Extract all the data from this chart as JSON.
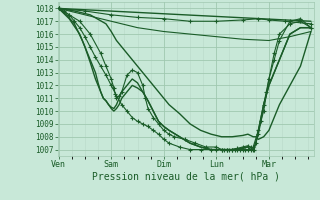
{
  "bg_color": "#c8e8d8",
  "grid_major_color": "#a0c8b0",
  "grid_minor_color": "#b8d8c8",
  "line_color": "#1a5c28",
  "ylim": [
    1006.5,
    1018.5
  ],
  "yticks": [
    1007,
    1008,
    1009,
    1010,
    1011,
    1012,
    1013,
    1014,
    1015,
    1016,
    1017,
    1018
  ],
  "xlabel": "Pression niveau de la mer( hPa )",
  "xtick_labels": [
    "Ven",
    "Sam",
    "Dim",
    "Lun",
    "Mar"
  ],
  "xtick_positions": [
    0.0,
    1.0,
    2.0,
    3.0,
    4.0
  ],
  "xlim": [
    -0.02,
    4.85
  ],
  "lines": [
    {
      "x": [
        0.0,
        4.8
      ],
      "y": [
        1018.0,
        1017.0
      ],
      "marker": null,
      "lw": 1.0,
      "ms": 0
    },
    {
      "x": [
        0.0,
        0.5,
        1.0,
        1.5,
        2.0,
        2.5,
        3.0,
        3.5,
        3.8,
        4.0,
        4.3,
        4.8
      ],
      "y": [
        1018.0,
        1017.8,
        1017.5,
        1017.3,
        1017.2,
        1017.0,
        1017.0,
        1017.1,
        1017.2,
        1017.1,
        1017.0,
        1016.8
      ],
      "marker": "+",
      "lw": 0.8,
      "ms": 3
    },
    {
      "x": [
        0.0,
        0.5,
        1.0,
        1.5,
        2.0,
        2.5,
        3.0,
        3.5,
        4.0,
        4.4,
        4.8
      ],
      "y": [
        1018.0,
        1017.5,
        1017.0,
        1016.5,
        1016.2,
        1016.0,
        1015.8,
        1015.6,
        1015.5,
        1015.8,
        1016.2
      ],
      "marker": null,
      "lw": 0.8,
      "ms": 0
    },
    {
      "x": [
        0.0,
        0.3,
        0.6,
        0.9,
        1.0,
        1.1,
        1.3,
        1.5,
        1.7,
        1.9,
        2.1,
        2.3,
        2.5,
        2.7,
        2.9,
        3.1,
        3.3,
        3.5,
        3.6,
        3.7,
        3.75,
        3.8,
        3.9,
        4.0,
        4.1,
        4.2,
        4.4,
        4.6,
        4.8
      ],
      "y": [
        1018.0,
        1017.8,
        1017.5,
        1016.8,
        1016.2,
        1015.5,
        1014.5,
        1013.5,
        1012.5,
        1011.5,
        1010.5,
        1009.8,
        1009.0,
        1008.5,
        1008.2,
        1008.0,
        1008.0,
        1008.1,
        1008.2,
        1008.0,
        1008.0,
        1007.8,
        1008.0,
        1008.5,
        1009.5,
        1010.5,
        1012.0,
        1013.5,
        1016.2
      ],
      "marker": null,
      "lw": 1.0,
      "ms": 0
    },
    {
      "x": [
        0.0,
        0.2,
        0.4,
        0.6,
        0.8,
        0.9,
        1.0,
        1.05,
        1.08,
        1.1,
        1.15,
        1.2,
        1.3,
        1.4,
        1.5,
        1.6,
        1.65,
        1.7,
        1.8,
        1.9,
        2.0,
        2.1,
        2.2,
        2.4,
        2.6,
        2.8,
        3.0,
        3.1,
        3.2,
        3.3,
        3.4,
        3.5,
        3.6,
        3.65,
        3.7,
        3.72,
        3.75,
        3.8,
        3.85,
        3.9,
        3.95,
        4.0,
        4.1,
        4.2,
        4.4,
        4.6,
        4.8
      ],
      "y": [
        1018.0,
        1017.5,
        1017.0,
        1016.0,
        1014.5,
        1013.5,
        1012.5,
        1011.8,
        1011.3,
        1011.0,
        1011.2,
        1011.5,
        1012.8,
        1013.2,
        1013.0,
        1012.0,
        1011.0,
        1010.2,
        1009.5,
        1009.0,
        1008.5,
        1008.2,
        1008.0,
        1007.8,
        1007.5,
        1007.2,
        1007.2,
        1007.0,
        1007.0,
        1007.0,
        1007.1,
        1007.2,
        1007.3,
        1007.2,
        1007.0,
        1007.0,
        1007.5,
        1008.2,
        1009.2,
        1010.5,
        1011.5,
        1012.5,
        1014.0,
        1015.5,
        1017.0,
        1017.2,
        1016.5
      ],
      "marker": "+",
      "lw": 0.8,
      "ms": 3
    },
    {
      "x": [
        0.0,
        0.2,
        0.4,
        0.5,
        0.6,
        0.7,
        0.8,
        0.85,
        0.9,
        0.95,
        1.0,
        1.05,
        1.1,
        1.15,
        1.2,
        1.3,
        1.4,
        1.5,
        1.6,
        1.7,
        1.8,
        1.9,
        2.0,
        2.1,
        2.3,
        2.5,
        2.7,
        2.9,
        3.0,
        3.1,
        3.2,
        3.3,
        3.5,
        3.6,
        3.65,
        3.7,
        3.75,
        3.8,
        3.85,
        3.9,
        4.0,
        4.2,
        4.4,
        4.6,
        4.8
      ],
      "y": [
        1018.0,
        1017.2,
        1016.0,
        1015.0,
        1013.8,
        1012.5,
        1011.5,
        1011.0,
        1010.8,
        1010.5,
        1010.3,
        1010.2,
        1010.5,
        1011.0,
        1011.5,
        1012.0,
        1012.5,
        1012.2,
        1011.5,
        1010.8,
        1010.0,
        1009.2,
        1008.8,
        1008.5,
        1008.0,
        1007.5,
        1007.2,
        1007.0,
        1007.0,
        1007.0,
        1007.0,
        1007.0,
        1007.1,
        1007.2,
        1007.0,
        1007.0,
        1007.5,
        1008.5,
        1009.5,
        1010.5,
        1012.0,
        1014.0,
        1016.0,
        1016.5,
        1016.5
      ],
      "marker": null,
      "lw": 1.0,
      "ms": 0
    },
    {
      "x": [
        0.0,
        0.15,
        0.3,
        0.45,
        0.6,
        0.7,
        0.75,
        0.8,
        0.85,
        0.9,
        0.95,
        1.0,
        1.05,
        1.1,
        1.15,
        1.2,
        1.3,
        1.4,
        1.5,
        1.6,
        1.7,
        1.8,
        1.9,
        2.0,
        2.1,
        2.3,
        2.5,
        2.7,
        2.9,
        3.0,
        3.1,
        3.2,
        3.3,
        3.5,
        3.6,
        3.65,
        3.7,
        3.75,
        3.8,
        3.85,
        3.9,
        4.0,
        4.2,
        4.4,
        4.6,
        4.8
      ],
      "y": [
        1018.0,
        1017.5,
        1016.8,
        1015.5,
        1014.0,
        1013.0,
        1012.2,
        1011.5,
        1011.0,
        1010.8,
        1010.5,
        1010.2,
        1010.0,
        1010.2,
        1010.5,
        1011.0,
        1011.5,
        1012.0,
        1011.8,
        1011.5,
        1010.8,
        1010.0,
        1009.2,
        1008.8,
        1008.5,
        1008.0,
        1007.5,
        1007.2,
        1007.0,
        1007.0,
        1007.0,
        1007.0,
        1007.0,
        1007.1,
        1007.2,
        1007.0,
        1007.0,
        1007.5,
        1008.5,
        1009.5,
        1010.5,
        1012.0,
        1014.0,
        1016.0,
        1016.5,
        1016.5
      ],
      "marker": null,
      "lw": 1.0,
      "ms": 0
    },
    {
      "x": [
        0.0,
        0.1,
        0.2,
        0.3,
        0.4,
        0.5,
        0.6,
        0.7,
        0.8,
        0.9,
        1.0,
        1.1,
        1.2,
        1.3,
        1.4,
        1.5,
        1.6,
        1.7,
        1.8,
        1.9,
        2.0,
        2.1,
        2.3,
        2.5,
        2.7,
        2.9,
        3.0,
        3.1,
        3.15,
        3.2,
        3.25,
        3.3,
        3.35,
        3.4,
        3.45,
        3.5,
        3.55,
        3.6,
        3.65,
        3.7,
        3.8,
        3.9,
        4.0,
        4.1,
        4.2,
        4.4,
        4.6,
        4.8
      ],
      "y": [
        1018.0,
        1017.8,
        1017.5,
        1017.0,
        1016.5,
        1015.8,
        1015.0,
        1014.2,
        1013.5,
        1012.8,
        1012.0,
        1011.2,
        1010.5,
        1010.0,
        1009.5,
        1009.2,
        1009.0,
        1008.8,
        1008.5,
        1008.2,
        1007.8,
        1007.5,
        1007.2,
        1007.0,
        1007.0,
        1007.0,
        1007.0,
        1007.0,
        1007.0,
        1007.0,
        1007.0,
        1007.0,
        1007.0,
        1007.0,
        1007.0,
        1007.0,
        1007.0,
        1007.0,
        1007.0,
        1007.2,
        1008.5,
        1010.0,
        1012.5,
        1014.5,
        1016.0,
        1016.8,
        1017.0,
        1016.5
      ],
      "marker": "+",
      "lw": 0.8,
      "ms": 3
    }
  ]
}
